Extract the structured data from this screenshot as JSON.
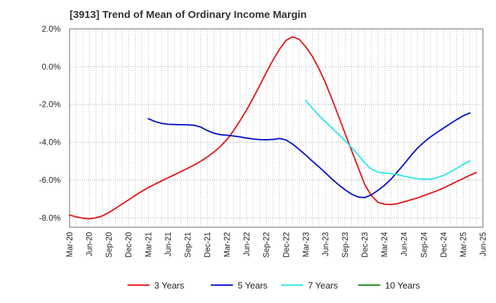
{
  "title": "[3913]  Trend of Mean of Ordinary Income Margin",
  "chart_data": {
    "type": "line",
    "title": "[3913]  Trend of Mean of Ordinary Income Margin",
    "xlabel": "",
    "ylabel": "",
    "ylim": [
      -8.5,
      2.0
    ],
    "y_ticks": [
      2.0,
      0.0,
      -2.0,
      -4.0,
      -6.0,
      -8.0
    ],
    "y_tick_labels": [
      "2.0%",
      "0.0%",
      "-2.0%",
      "-4.0%",
      "-6.0%",
      "-8.0%"
    ],
    "x_ticks": [
      "Mar-20",
      "Jun-20",
      "Sep-20",
      "Dec-20",
      "Mar-21",
      "Jun-21",
      "Sep-21",
      "Dec-21",
      "Mar-22",
      "Jun-22",
      "Sep-22",
      "Dec-22",
      "Mar-23",
      "Jun-23",
      "Sep-23",
      "Dec-23",
      "Mar-24",
      "Jun-24",
      "Sep-24",
      "Dec-24",
      "Mar-25",
      "Jun-25"
    ],
    "grid": true,
    "legend_position": "bottom",
    "series": [
      {
        "name": "3 Years",
        "color": "#e31a1c",
        "points": [
          [
            "Mar-20",
            -7.85
          ],
          [
            "Apr-20",
            -7.95
          ],
          [
            "May-20",
            -8.02
          ],
          [
            "Jun-20",
            -8.05
          ],
          [
            "Jul-20",
            -8.0
          ],
          [
            "Aug-20",
            -7.9
          ],
          [
            "Sep-20",
            -7.72
          ],
          [
            "Oct-20",
            -7.5
          ],
          [
            "Nov-20",
            -7.27
          ],
          [
            "Dec-20",
            -7.05
          ],
          [
            "Jan-21",
            -6.82
          ],
          [
            "Feb-21",
            -6.6
          ],
          [
            "Mar-21",
            -6.4
          ],
          [
            "Apr-21",
            -6.22
          ],
          [
            "May-21",
            -6.05
          ],
          [
            "Jun-21",
            -5.88
          ],
          [
            "Jul-21",
            -5.72
          ],
          [
            "Aug-21",
            -5.55
          ],
          [
            "Sep-21",
            -5.38
          ],
          [
            "Oct-21",
            -5.2
          ],
          [
            "Nov-21",
            -5.0
          ],
          [
            "Dec-21",
            -4.78
          ],
          [
            "Jan-22",
            -4.52
          ],
          [
            "Feb-22",
            -4.22
          ],
          [
            "Mar-22",
            -3.85
          ],
          [
            "Apr-22",
            -3.38
          ],
          [
            "May-22",
            -2.85
          ],
          [
            "Jun-22",
            -2.28
          ],
          [
            "Jul-22",
            -1.65
          ],
          [
            "Aug-22",
            -0.98
          ],
          [
            "Sep-22",
            -0.3
          ],
          [
            "Oct-22",
            0.35
          ],
          [
            "Nov-22",
            0.92
          ],
          [
            "Dec-22",
            1.4
          ],
          [
            "Jan-23",
            1.58
          ],
          [
            "Feb-23",
            1.45
          ],
          [
            "Mar-23",
            1.05
          ],
          [
            "Apr-23",
            0.55
          ],
          [
            "May-23",
            -0.1
          ],
          [
            "Jun-23",
            -0.85
          ],
          [
            "Jul-23",
            -1.72
          ],
          [
            "Aug-23",
            -2.62
          ],
          [
            "Sep-23",
            -3.55
          ],
          [
            "Oct-23",
            -4.45
          ],
          [
            "Nov-23",
            -5.35
          ],
          [
            "Dec-23",
            -6.25
          ],
          [
            "Jan-24",
            -6.82
          ],
          [
            "Feb-24",
            -7.18
          ],
          [
            "Mar-24",
            -7.28
          ],
          [
            "Apr-24",
            -7.3
          ],
          [
            "May-24",
            -7.25
          ],
          [
            "Jun-24",
            -7.15
          ],
          [
            "Jul-24",
            -7.05
          ],
          [
            "Aug-24",
            -6.95
          ],
          [
            "Sep-24",
            -6.82
          ],
          [
            "Oct-24",
            -6.7
          ],
          [
            "Nov-24",
            -6.57
          ],
          [
            "Dec-24",
            -6.42
          ],
          [
            "Jan-25",
            -6.25
          ],
          [
            "Feb-25",
            -6.08
          ],
          [
            "Mar-25",
            -5.92
          ],
          [
            "Apr-25",
            -5.75
          ],
          [
            "May-25",
            -5.6
          ]
        ]
      },
      {
        "name": "5 Years",
        "color": "#0a14c8",
        "points": [
          [
            "Mar-21",
            -2.75
          ],
          [
            "Apr-21",
            -2.9
          ],
          [
            "May-21",
            -3.0
          ],
          [
            "Jun-21",
            -3.05
          ],
          [
            "Jul-21",
            -3.06
          ],
          [
            "Aug-21",
            -3.07
          ],
          [
            "Sep-21",
            -3.08
          ],
          [
            "Oct-21",
            -3.1
          ],
          [
            "Nov-21",
            -3.2
          ],
          [
            "Dec-21",
            -3.38
          ],
          [
            "Jan-22",
            -3.52
          ],
          [
            "Feb-22",
            -3.6
          ],
          [
            "Mar-22",
            -3.63
          ],
          [
            "Apr-22",
            -3.67
          ],
          [
            "May-22",
            -3.72
          ],
          [
            "Jun-22",
            -3.78
          ],
          [
            "Jul-22",
            -3.83
          ],
          [
            "Aug-22",
            -3.86
          ],
          [
            "Sep-22",
            -3.87
          ],
          [
            "Oct-22",
            -3.85
          ],
          [
            "Nov-22",
            -3.8
          ],
          [
            "Dec-22",
            -3.88
          ],
          [
            "Jan-23",
            -4.1
          ],
          [
            "Feb-23",
            -4.38
          ],
          [
            "Mar-23",
            -4.68
          ],
          [
            "Apr-23",
            -5.0
          ],
          [
            "May-23",
            -5.3
          ],
          [
            "Jun-23",
            -5.62
          ],
          [
            "Jul-23",
            -5.95
          ],
          [
            "Aug-23",
            -6.25
          ],
          [
            "Sep-23",
            -6.52
          ],
          [
            "Oct-23",
            -6.75
          ],
          [
            "Nov-23",
            -6.9
          ],
          [
            "Dec-23",
            -6.93
          ],
          [
            "Jan-24",
            -6.78
          ],
          [
            "Feb-24",
            -6.55
          ],
          [
            "Mar-24",
            -6.28
          ],
          [
            "Apr-24",
            -5.95
          ],
          [
            "May-24",
            -5.55
          ],
          [
            "Jun-24",
            -5.15
          ],
          [
            "Jul-24",
            -4.72
          ],
          [
            "Aug-24",
            -4.32
          ],
          [
            "Sep-24",
            -4.0
          ],
          [
            "Oct-24",
            -3.72
          ],
          [
            "Nov-24",
            -3.48
          ],
          [
            "Dec-24",
            -3.25
          ],
          [
            "Jan-25",
            -3.02
          ],
          [
            "Feb-25",
            -2.8
          ],
          [
            "Mar-25",
            -2.6
          ],
          [
            "Apr-25",
            -2.45
          ]
        ]
      },
      {
        "name": "7 Years",
        "color": "#33e6e6",
        "points": [
          [
            "Mar-23",
            -1.78
          ],
          [
            "Apr-23",
            -2.2
          ],
          [
            "May-23",
            -2.58
          ],
          [
            "Jun-23",
            -2.92
          ],
          [
            "Jul-23",
            -3.25
          ],
          [
            "Aug-23",
            -3.58
          ],
          [
            "Sep-23",
            -3.92
          ],
          [
            "Oct-23",
            -4.28
          ],
          [
            "Nov-23",
            -4.68
          ],
          [
            "Dec-23",
            -5.1
          ],
          [
            "Jan-24",
            -5.42
          ],
          [
            "Feb-24",
            -5.58
          ],
          [
            "Mar-24",
            -5.63
          ],
          [
            "Apr-24",
            -5.66
          ],
          [
            "May-24",
            -5.72
          ],
          [
            "Jun-24",
            -5.8
          ],
          [
            "Jul-24",
            -5.87
          ],
          [
            "Aug-24",
            -5.93
          ],
          [
            "Sep-24",
            -5.96
          ],
          [
            "Oct-24",
            -5.95
          ],
          [
            "Nov-24",
            -5.88
          ],
          [
            "Dec-24",
            -5.75
          ],
          [
            "Jan-25",
            -5.58
          ],
          [
            "Feb-25",
            -5.38
          ],
          [
            "Mar-25",
            -5.18
          ],
          [
            "Apr-25",
            -4.98
          ]
        ]
      },
      {
        "name": "10 Years",
        "color": "#1e8c1e",
        "points": []
      }
    ]
  }
}
